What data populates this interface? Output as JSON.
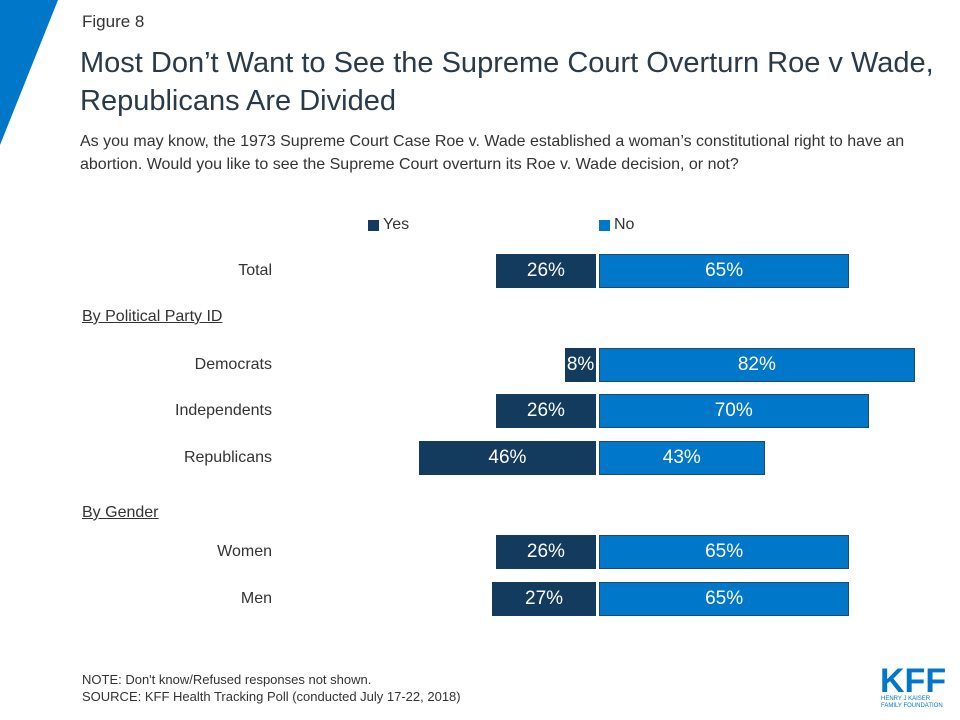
{
  "figure_label": "Figure 8",
  "title": "Most Don’t Want to See the Supreme Court Overturn Roe v Wade, Republicans Are Divided",
  "subtitle": "As you may know, the 1973 Supreme Court Case Roe v. Wade established a woman’s constitutional right to have an abortion. Would you like to see the Supreme Court overturn its Roe v. Wade decision, or not?",
  "colors": {
    "yes": "#123b5e",
    "no": "#0077c8",
    "accent": "#0077c8"
  },
  "chart_data": {
    "type": "bar",
    "orientation": "horizontal-diverging",
    "title": "Most Don’t Want to See the Supreme Court Overturn Roe v Wade, Republicans Are Divided",
    "legend": [
      "Yes",
      "No"
    ],
    "legend_placement": "top",
    "groups": [
      {
        "label": "",
        "categories": [
          "Total"
        ]
      },
      {
        "label": "By Political Party ID",
        "categories": [
          "Democrats",
          "Independents",
          "Republicans"
        ]
      },
      {
        "label": "By Gender",
        "categories": [
          "Women",
          "Men"
        ]
      }
    ],
    "categories": [
      "Total",
      "Democrats",
      "Independents",
      "Republicans",
      "Women",
      "Men"
    ],
    "series": [
      {
        "name": "Yes",
        "values": [
          26,
          8,
          26,
          46,
          26,
          27
        ],
        "labels": [
          "26%",
          "8%",
          "26%",
          "46%",
          "26%",
          "27%"
        ]
      },
      {
        "name": "No",
        "values": [
          65,
          82,
          70,
          43,
          65,
          65
        ],
        "labels": [
          "65%",
          "82%",
          "70%",
          "43%",
          "65%",
          "65%"
        ]
      }
    ],
    "unit": "%"
  },
  "note": "NOTE: Don't know/Refused responses not shown.",
  "source": "SOURCE: KFF Health Tracking Poll (conducted July 17-22, 2018)",
  "logo": {
    "main": "KFF",
    "line1": "HENRY J KAISER",
    "line2": "FAMILY FOUNDATION"
  }
}
